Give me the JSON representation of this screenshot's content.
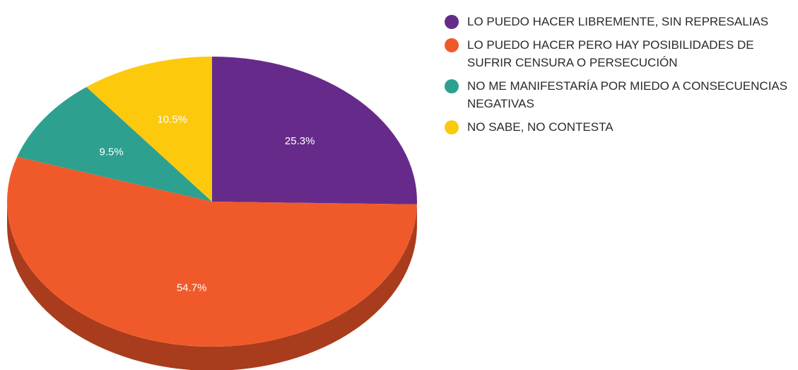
{
  "chart_data": {
    "type": "pie",
    "style": "3d",
    "title": "",
    "legend_position": "right",
    "categories": [
      "LO PUEDO HACER LIBREMENTE, SIN REPRESALIAS",
      "LO PUEDO HACER PERO HAY POSIBILIDADES DE SUFRIR CENSURA O PERSECUCIÓN",
      "NO ME MANIFESTARÍA POR MIEDO A CONSECUENCIAS NEGATIVAS",
      "NO SABE, NO CONTESTA"
    ],
    "values": [
      25.3,
      54.7,
      9.5,
      10.5
    ],
    "value_labels": [
      "25.3%",
      "54.7%",
      "9.5%",
      "10.5%"
    ],
    "colors": [
      "#662b8a",
      "#f05a2a",
      "#2da08f",
      "#fcc90d"
    ],
    "side_colors": [
      "#4a1f65",
      "#a93c1c",
      "#1f7164",
      "#b58f09"
    ]
  }
}
